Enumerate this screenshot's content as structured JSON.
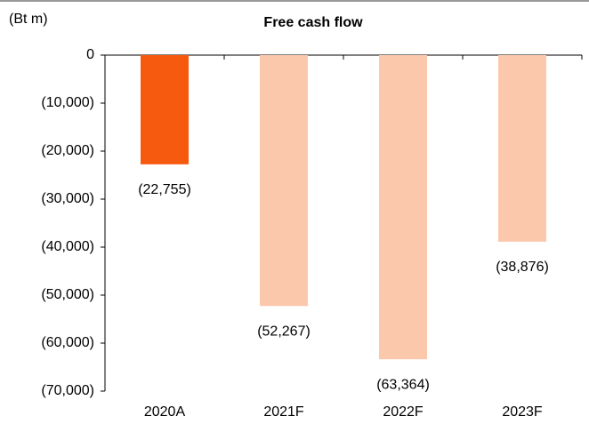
{
  "chart_data": {
    "type": "bar",
    "title": "Free cash flow",
    "y_label": "(Bt m)",
    "categories": [
      "2020A",
      "2021F",
      "2022F",
      "2023F"
    ],
    "values": [
      -22755,
      -52267,
      -63364,
      -38876
    ],
    "value_labels": [
      "(22,755)",
      "(52,267)",
      "(63,364)",
      "(38,876)"
    ],
    "colors": [
      "#f55a0f",
      "#fbc8ac",
      "#fbc8ac",
      "#fbc8ac"
    ],
    "ylim": [
      -70000,
      0
    ],
    "yticks": [
      0,
      {
        "value": -10000,
        "label": "(10,000)"
      },
      {
        "value": -20000,
        "label": "(20,000)"
      },
      {
        "value": -30000,
        "label": "(30,000)"
      },
      {
        "value": -40000,
        "label": "(40,000)"
      },
      {
        "value": -50000,
        "label": "(50,000)"
      },
      {
        "value": -60000,
        "label": "(60,000)"
      },
      {
        "value": -70000,
        "label": "(70,000)"
      }
    ],
    "grid": false
  }
}
